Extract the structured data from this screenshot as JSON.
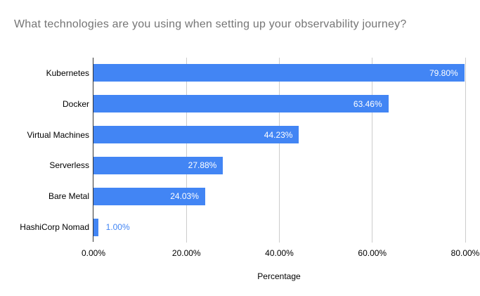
{
  "window": {
    "background": "#ffffff"
  },
  "chart_data": {
    "type": "bar",
    "orientation": "horizontal",
    "title": "What technologies are you using when setting up your observability journey?",
    "categories": [
      "Kubernetes",
      "Docker",
      "Virtual Machines",
      "Serverless",
      "Bare Metal",
      "HashiCorp Nomad"
    ],
    "values": [
      79.8,
      63.46,
      44.23,
      27.88,
      24.03,
      1.0
    ],
    "value_labels": [
      "79.80%",
      "63.46%",
      "44.23%",
      "27.88%",
      "24.03%",
      "1.00%"
    ],
    "xlabel": "Percentage",
    "ylabel": "",
    "x_ticks": [
      {
        "value": 0,
        "label": "0.00%"
      },
      {
        "value": 20,
        "label": "20.00%"
      },
      {
        "value": 40,
        "label": "40.00%"
      },
      {
        "value": 60,
        "label": "60.00%"
      },
      {
        "value": 80,
        "label": "80.00%"
      }
    ],
    "xlim": [
      0,
      80
    ],
    "grid": true,
    "legend": "none",
    "colors": {
      "bar": "#4285f4",
      "title_text": "#757575",
      "gridline": "#cccccc",
      "baseline": "#333333",
      "value_label_inside": "#ffffff",
      "value_label_outside": "#4285f4",
      "axis_text": "#000000"
    }
  }
}
